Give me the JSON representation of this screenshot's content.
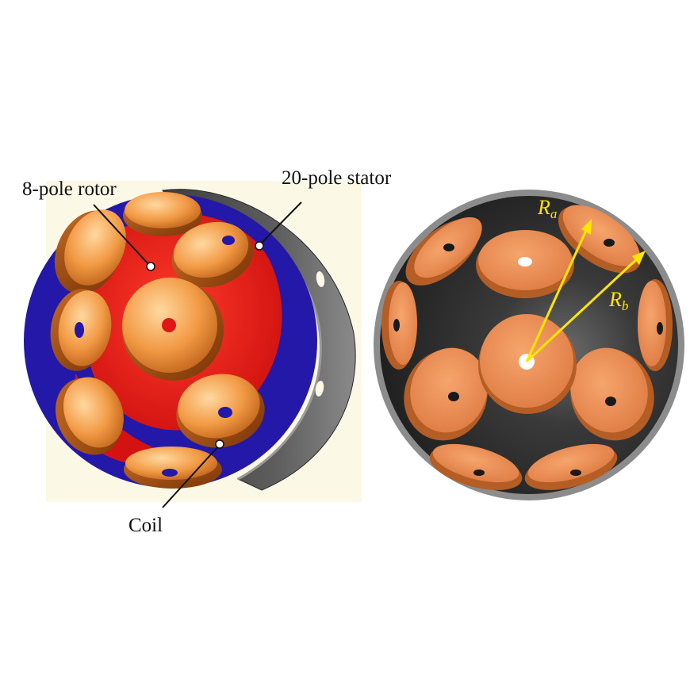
{
  "labels": {
    "rotor": "8-pole rotor",
    "stator": "20-pole stator",
    "coil": "Coil"
  },
  "symbols": {
    "ra_main": "R",
    "ra_sub": "a",
    "rb_main": "R",
    "rb_sub": "b"
  },
  "colors": {
    "panel_bg": "#fbf9e6",
    "copper": "#e8893a",
    "rotor_red": "#e01616",
    "rotor_blue": "#2418a8",
    "stator_grey": "#4e4e4e",
    "arrow_yellow": "#ffe600"
  }
}
